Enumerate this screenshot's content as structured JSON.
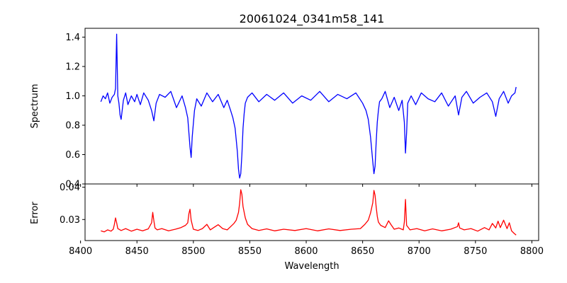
{
  "chart_data": [
    {
      "type": "line",
      "panel": "top",
      "title": "20061024_0341m58_141",
      "ylabel": "Spectrum",
      "xlim": [
        8404,
        8806
      ],
      "ylim": [
        0.4,
        1.46
      ],
      "xticks": [
        8400,
        8450,
        8500,
        8550,
        8600,
        8650,
        8700,
        8750,
        8800
      ],
      "yticks": [
        0.4,
        0.6,
        0.8,
        1.0,
        1.2,
        1.4
      ],
      "ytick_labels": [
        "0.4",
        "0.6",
        "0.8",
        "1.0",
        "1.2",
        "1.4"
      ],
      "grid": false,
      "series": [
        {
          "color": "#0000ff",
          "x": [
            8418,
            8420,
            8422,
            8424,
            8426,
            8428,
            8430,
            8431,
            8432,
            8433,
            8434,
            8435,
            8436,
            8438,
            8440,
            8442,
            8445,
            8448,
            8450,
            8453,
            8456,
            8460,
            8463,
            8465,
            8467,
            8470,
            8475,
            8480,
            8485,
            8490,
            8493,
            8495,
            8497,
            8498,
            8499,
            8501,
            8503,
            8507,
            8512,
            8517,
            8522,
            8527,
            8530,
            8533,
            8535,
            8537,
            8539,
            8540,
            8541,
            8542,
            8543,
            8544,
            8545,
            8546,
            8548,
            8552,
            8558,
            8565,
            8572,
            8580,
            8588,
            8596,
            8604,
            8612,
            8620,
            8628,
            8636,
            8644,
            8650,
            8653,
            8655,
            8657,
            8659,
            8660,
            8661,
            8662,
            8663,
            8664,
            8665,
            8667,
            8670,
            8674,
            8678,
            8682,
            8685,
            8687,
            8688,
            8689,
            8690,
            8693,
            8697,
            8702,
            8708,
            8714,
            8720,
            8726,
            8732,
            8735,
            8738,
            8742,
            8748,
            8754,
            8760,
            8765,
            8768,
            8771,
            8775,
            8779,
            8782,
            8785,
            8786
          ],
          "y": [
            0.96,
            1.0,
            0.98,
            1.02,
            0.95,
            0.99,
            1.01,
            1.05,
            1.42,
            1.0,
            0.95,
            0.87,
            0.84,
            0.97,
            1.02,
            0.94,
            1.0,
            0.96,
            1.01,
            0.94,
            1.02,
            0.97,
            0.9,
            0.83,
            0.95,
            1.01,
            0.99,
            1.03,
            0.92,
            1.0,
            0.92,
            0.85,
            0.65,
            0.58,
            0.72,
            0.9,
            0.98,
            0.93,
            1.02,
            0.96,
            1.01,
            0.92,
            0.97,
            0.9,
            0.85,
            0.78,
            0.62,
            0.5,
            0.44,
            0.47,
            0.6,
            0.78,
            0.88,
            0.95,
            0.99,
            1.02,
            0.96,
            1.01,
            0.97,
            1.02,
            0.95,
            1.0,
            0.97,
            1.03,
            0.96,
            1.01,
            0.98,
            1.02,
            0.95,
            0.9,
            0.84,
            0.72,
            0.55,
            0.47,
            0.52,
            0.68,
            0.82,
            0.9,
            0.96,
            0.98,
            1.03,
            0.92,
            0.99,
            0.9,
            0.97,
            0.82,
            0.61,
            0.75,
            0.95,
            1.0,
            0.94,
            1.02,
            0.98,
            0.96,
            1.02,
            0.93,
            1.0,
            0.87,
            0.99,
            1.03,
            0.95,
            0.99,
            1.02,
            0.96,
            0.86,
            0.98,
            1.03,
            0.95,
            1.0,
            1.02,
            1.06
          ]
        }
      ]
    },
    {
      "type": "line",
      "panel": "bottom",
      "xlabel": "Wavelength",
      "ylabel": "Error",
      "xlim": [
        8404,
        8806
      ],
      "ylim": [
        0.0235,
        0.041
      ],
      "xticks": [
        8400,
        8450,
        8500,
        8550,
        8600,
        8650,
        8700,
        8750,
        8800
      ],
      "xtick_labels": [
        "8400",
        "8450",
        "8500",
        "8550",
        "8600",
        "8650",
        "8700",
        "8750",
        "8800"
      ],
      "yticks": [
        0.03,
        0.04
      ],
      "ytick_labels": [
        "0.03",
        "0.04"
      ],
      "grid": false,
      "series": [
        {
          "color": "#ff0000",
          "x": [
            8418,
            8421,
            8424,
            8427,
            8429,
            8430,
            8431,
            8432,
            8433,
            8436,
            8440,
            8445,
            8450,
            8455,
            8460,
            8463,
            8464,
            8465,
            8466,
            8468,
            8472,
            8478,
            8484,
            8489,
            8493,
            8495,
            8496,
            8497,
            8498,
            8500,
            8504,
            8508,
            8512,
            8515,
            8518,
            8522,
            8526,
            8530,
            8533,
            8536,
            8538,
            8540,
            8541,
            8542,
            8543,
            8544,
            8546,
            8548,
            8552,
            8558,
            8565,
            8572,
            8580,
            8590,
            8600,
            8610,
            8620,
            8630,
            8640,
            8648,
            8652,
            8655,
            8657,
            8659,
            8660,
            8661,
            8662,
            8663,
            8664,
            8666,
            8670,
            8673,
            8675,
            8678,
            8682,
            8686,
            8687,
            8688,
            8689,
            8692,
            8698,
            8705,
            8712,
            8720,
            8728,
            8734,
            8735,
            8736,
            8740,
            8746,
            8752,
            8758,
            8762,
            8765,
            8768,
            8770,
            8772,
            8775,
            8778,
            8780,
            8782,
            8784,
            8786
          ],
          "y": [
            0.0265,
            0.0262,
            0.0268,
            0.0264,
            0.027,
            0.0285,
            0.0305,
            0.029,
            0.0272,
            0.0266,
            0.0272,
            0.0264,
            0.027,
            0.0265,
            0.0271,
            0.029,
            0.0322,
            0.0296,
            0.0274,
            0.0268,
            0.0272,
            0.0265,
            0.027,
            0.0275,
            0.0282,
            0.029,
            0.0318,
            0.0332,
            0.0298,
            0.027,
            0.0266,
            0.0272,
            0.0285,
            0.0268,
            0.0275,
            0.0284,
            0.0272,
            0.0268,
            0.0278,
            0.0288,
            0.0298,
            0.0322,
            0.035,
            0.0392,
            0.0378,
            0.034,
            0.0305,
            0.0285,
            0.0272,
            0.0266,
            0.0271,
            0.0265,
            0.027,
            0.0266,
            0.0272,
            0.0265,
            0.0271,
            0.0266,
            0.027,
            0.0272,
            0.0285,
            0.0298,
            0.032,
            0.0352,
            0.039,
            0.0375,
            0.034,
            0.031,
            0.0292,
            0.0282,
            0.0275,
            0.0296,
            0.0285,
            0.027,
            0.0274,
            0.0268,
            0.0292,
            0.0362,
            0.0282,
            0.0268,
            0.0272,
            0.0265,
            0.0271,
            0.0265,
            0.027,
            0.0278,
            0.029,
            0.0274,
            0.0268,
            0.0272,
            0.0264,
            0.0275,
            0.0268,
            0.0288,
            0.0274,
            0.0295,
            0.0275,
            0.0298,
            0.0272,
            0.029,
            0.0265,
            0.0258,
            0.0252
          ]
        }
      ]
    }
  ]
}
